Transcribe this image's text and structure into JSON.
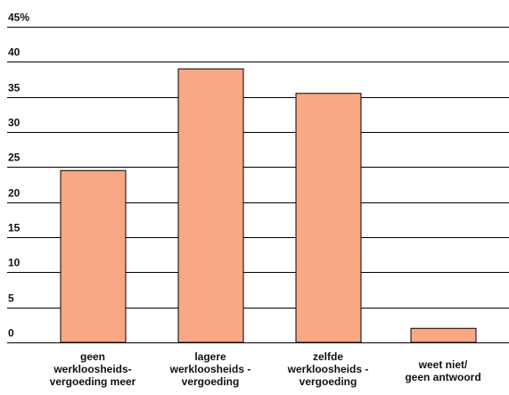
{
  "chart_data": {
    "type": "bar",
    "title": "",
    "xlabel": "",
    "ylabel": "",
    "ylim": [
      0,
      45
    ],
    "yticks": [
      0,
      5,
      10,
      15,
      20,
      25,
      30,
      35,
      40,
      45
    ],
    "ytick_labels": [
      "0",
      "5",
      "10",
      "15",
      "20",
      "25",
      "30",
      "35",
      "40",
      "45%"
    ],
    "grid": true,
    "categories": [
      [
        "geen",
        "werkloosheids-",
        "vergoeding meer"
      ],
      [
        "lagere",
        "werkloosheids -",
        "vergoeding"
      ],
      [
        "zelfde",
        "werkloosheids -",
        "vergoeding"
      ],
      [
        "weet niet/",
        "geen antwoord"
      ]
    ],
    "values": [
      24.5,
      39,
      35.5,
      2
    ],
    "colors": {
      "bar_fill": "#f8a885",
      "bar_stroke": "#000000",
      "grid": "#000000",
      "text": "#111111"
    }
  }
}
